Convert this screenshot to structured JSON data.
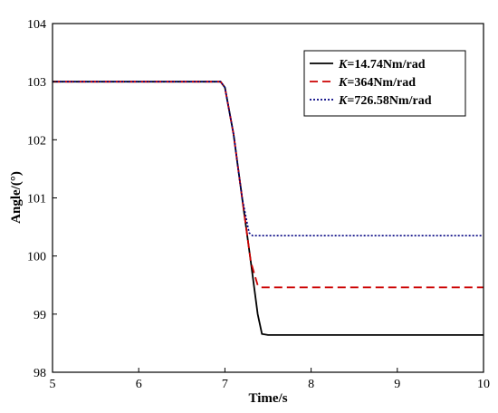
{
  "chart_data": {
    "type": "line",
    "xlabel": "Time/s",
    "ylabel": "Angle/(°)",
    "xlim": [
      5,
      10
    ],
    "ylim": [
      98,
      104
    ],
    "xticks": [
      5,
      6,
      7,
      8,
      9,
      10
    ],
    "yticks": [
      98,
      99,
      100,
      101,
      102,
      103,
      104
    ],
    "grid": false,
    "legend_position": "top-right",
    "series": [
      {
        "name_prefix": "K",
        "name_suffix": "=14.74Nm/rad",
        "color": "#000000",
        "style": "solid",
        "points": [
          [
            5,
            103
          ],
          [
            6.95,
            103
          ],
          [
            7.0,
            102.9
          ],
          [
            7.1,
            102.1
          ],
          [
            7.2,
            101.0
          ],
          [
            7.3,
            99.9
          ],
          [
            7.38,
            99.0
          ],
          [
            7.43,
            98.66
          ],
          [
            7.5,
            98.64
          ],
          [
            10,
            98.64
          ]
        ]
      },
      {
        "name_prefix": "K",
        "name_suffix": "=364Nm/rad",
        "color": "#cc0000",
        "style": "dashed",
        "points": [
          [
            5,
            103
          ],
          [
            6.95,
            103
          ],
          [
            7.0,
            102.9
          ],
          [
            7.1,
            102.1
          ],
          [
            7.2,
            101.0
          ],
          [
            7.3,
            99.9
          ],
          [
            7.38,
            99.5
          ],
          [
            7.42,
            99.46
          ],
          [
            10,
            99.46
          ]
        ]
      },
      {
        "name_prefix": "K",
        "name_suffix": "=726.58Nm/rad",
        "color": "#000080",
        "style": "dotted",
        "points": [
          [
            5,
            103
          ],
          [
            6.95,
            103
          ],
          [
            7.0,
            102.9
          ],
          [
            7.1,
            102.1
          ],
          [
            7.2,
            101.0
          ],
          [
            7.28,
            100.4
          ],
          [
            7.32,
            100.35
          ],
          [
            10,
            100.35
          ]
        ]
      }
    ]
  }
}
